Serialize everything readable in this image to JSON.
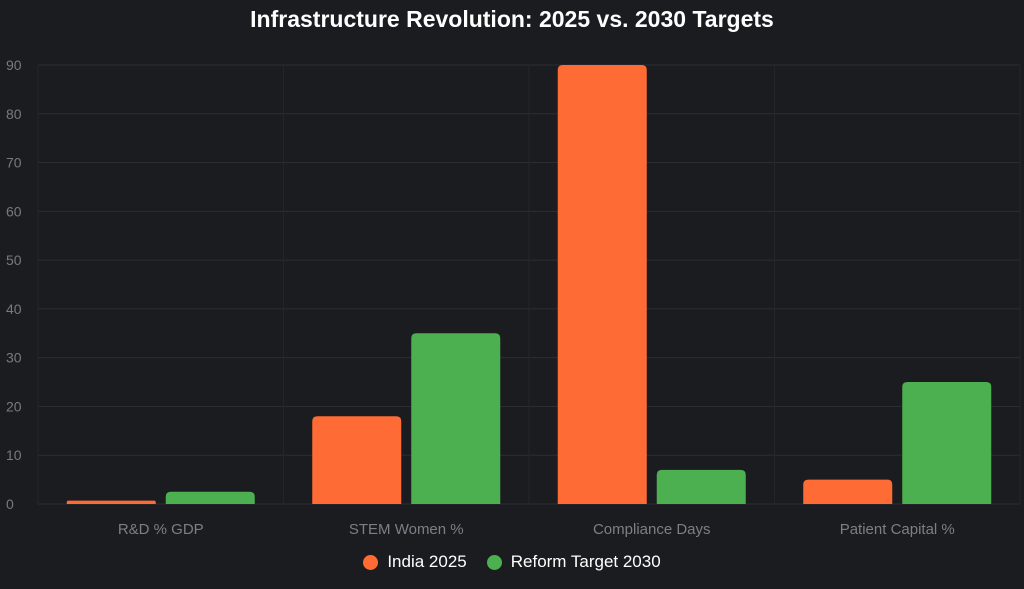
{
  "chart_data": {
    "type": "bar",
    "title": "Infrastructure Revolution: 2025 vs. 2030 Targets",
    "categories": [
      "R&D % GDP",
      "STEM Women %",
      "Compliance Days",
      "Patient Capital %"
    ],
    "series": [
      {
        "name": "India 2025",
        "color": "#ff6b35",
        "values": [
          0.7,
          18,
          90,
          5
        ]
      },
      {
        "name": "Reform Target 2030",
        "color": "#4caf50",
        "values": [
          2.5,
          35,
          7,
          25
        ]
      }
    ],
    "y_ticks": [
      "0",
      "10",
      "20",
      "30",
      "40",
      "50",
      "60",
      "70",
      "80",
      "90"
    ],
    "ylim": [
      0,
      90
    ],
    "grid": true,
    "legend_position": "bottom-center"
  }
}
